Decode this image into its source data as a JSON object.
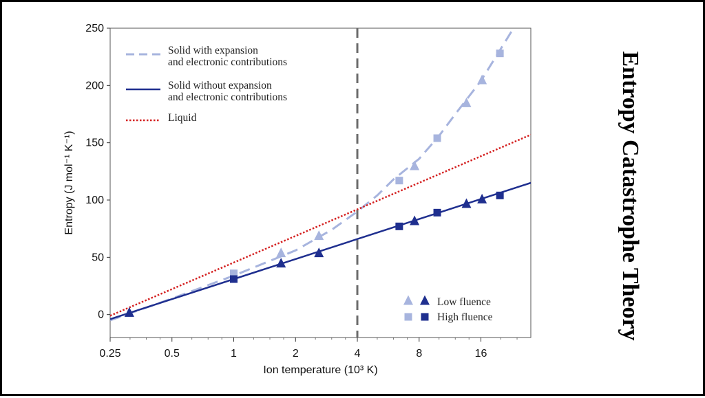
{
  "side_title": "Entropy Catastrophe Theory",
  "colors": {
    "dark_blue": "#1f2f8f",
    "light_blue": "#a7b4de",
    "liquid_red": "#d42020",
    "marker_line": "#6b6b6b",
    "frame": "#555555"
  },
  "chart_data": {
    "type": "line",
    "title": "",
    "xlabel": "Ion temperature (10³ K)",
    "ylabel": "Entropy (J mol⁻¹ K⁻¹)",
    "x_scale": "log2",
    "xlim": [
      0.25,
      28
    ],
    "ylim": [
      -20,
      250
    ],
    "x_ticks": [
      0.25,
      0.5,
      1,
      2,
      4,
      8,
      16
    ],
    "x_tick_labels": [
      "0.25",
      "0.5",
      "1",
      "2",
      "4",
      "8",
      "16"
    ],
    "y_ticks": [
      0,
      50,
      100,
      150,
      200,
      250
    ],
    "y_tick_labels": [
      "0",
      "50",
      "100",
      "150",
      "200",
      "250"
    ],
    "vertical_marker": 4,
    "series": [
      {
        "name": "Solid with expansion and electronic contributions",
        "style": "dashed",
        "color": "light_blue",
        "x": [
          0.25,
          0.5,
          1,
          2,
          3,
          4,
          5,
          6,
          8,
          10,
          12,
          16,
          20,
          24
        ],
        "y": [
          -5,
          14,
          34,
          56,
          74,
          90,
          104,
          118,
          136,
          156,
          175,
          204,
          232,
          255
        ]
      },
      {
        "name": "Solid without expansion and electronic contributions",
        "style": "solid",
        "color": "dark_blue",
        "x": [
          0.25,
          28
        ],
        "y": [
          -4,
          115
        ]
      },
      {
        "name": "Liquid",
        "style": "dotted",
        "color": "liquid_red",
        "x": [
          0.25,
          28
        ],
        "y": [
          -1,
          157
        ]
      }
    ],
    "points": [
      {
        "group": "Low fluence",
        "kind": "light",
        "shape": "triangle",
        "x": 0.31,
        "y": 2
      },
      {
        "group": "Low fluence",
        "kind": "light",
        "shape": "triangle",
        "x": 1.7,
        "y": 54
      },
      {
        "group": "Low fluence",
        "kind": "light",
        "shape": "triangle",
        "x": 2.6,
        "y": 69
      },
      {
        "group": "Low fluence",
        "kind": "light",
        "shape": "triangle",
        "x": 7.6,
        "y": 130
      },
      {
        "group": "Low fluence",
        "kind": "light",
        "shape": "triangle",
        "x": 13.6,
        "y": 185
      },
      {
        "group": "Low fluence",
        "kind": "light",
        "shape": "triangle",
        "x": 16.2,
        "y": 205
      },
      {
        "group": "Low fluence",
        "kind": "dark",
        "shape": "triangle",
        "x": 0.31,
        "y": 2
      },
      {
        "group": "Low fluence",
        "kind": "dark",
        "shape": "triangle",
        "x": 1.7,
        "y": 45
      },
      {
        "group": "Low fluence",
        "kind": "dark",
        "shape": "triangle",
        "x": 2.6,
        "y": 54
      },
      {
        "group": "Low fluence",
        "kind": "dark",
        "shape": "triangle",
        "x": 7.6,
        "y": 82
      },
      {
        "group": "Low fluence",
        "kind": "dark",
        "shape": "triangle",
        "x": 13.6,
        "y": 97
      },
      {
        "group": "Low fluence",
        "kind": "dark",
        "shape": "triangle",
        "x": 16.2,
        "y": 101
      },
      {
        "group": "High fluence",
        "kind": "light",
        "shape": "square",
        "x": 1.0,
        "y": 36
      },
      {
        "group": "High fluence",
        "kind": "light",
        "shape": "square",
        "x": 6.4,
        "y": 117
      },
      {
        "group": "High fluence",
        "kind": "light",
        "shape": "square",
        "x": 9.8,
        "y": 154
      },
      {
        "group": "High fluence",
        "kind": "light",
        "shape": "square",
        "x": 19.8,
        "y": 228
      },
      {
        "group": "High fluence",
        "kind": "dark",
        "shape": "square",
        "x": 1.0,
        "y": 31
      },
      {
        "group": "High fluence",
        "kind": "dark",
        "shape": "square",
        "x": 6.4,
        "y": 77
      },
      {
        "group": "High fluence",
        "kind": "dark",
        "shape": "square",
        "x": 9.8,
        "y": 89
      },
      {
        "group": "High fluence",
        "kind": "dark",
        "shape": "square",
        "x": 19.8,
        "y": 104
      }
    ],
    "legend_lines": {
      "dashed": [
        "Solid with expansion",
        "and electronic contributions"
      ],
      "solid": [
        "Solid without expansion",
        "and electronic contributions"
      ],
      "dotted": [
        "Liquid"
      ]
    },
    "legend_markers": {
      "low": "Low fluence",
      "high": "High fluence"
    }
  }
}
